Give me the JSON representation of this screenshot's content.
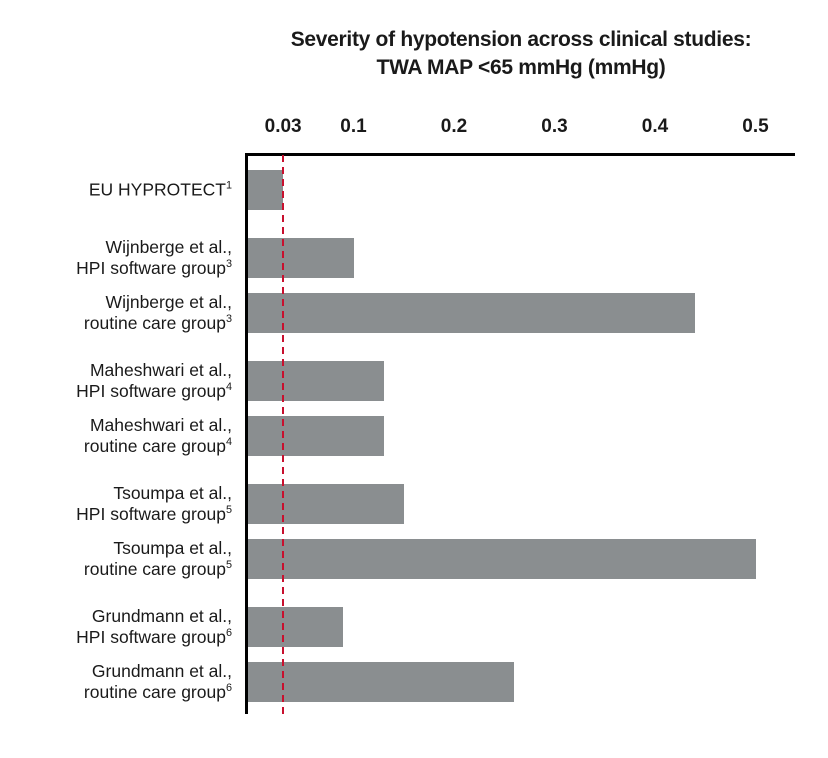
{
  "title": {
    "line1": "Severity of hypotension across clinical studies:",
    "line2": "TWA MAP <65 mmHg (mmHg)"
  },
  "axis": {
    "tick_values": [
      0.03,
      0.1,
      0.2,
      0.3,
      0.4,
      0.5
    ],
    "tick_labels": [
      "0.03",
      "0.1",
      "0.2",
      "0.3",
      "0.4",
      "0.5"
    ]
  },
  "colors": {
    "bar": "#8a8e90",
    "reference_line": "#c8102e",
    "axis": "#000000",
    "text": "#1a1a1a"
  },
  "chart_data": {
    "type": "bar",
    "orientation": "horizontal",
    "title": "Severity of hypotension across clinical studies: TWA MAP <65 mmHg (mmHg)",
    "categories": [
      "EU HYPROTECT¹",
      "Wijnberge et al., HPI software group³",
      "Wijnberge et al., routine care group³",
      "Maheshwari et al., HPI software group⁴",
      "Maheshwari et al., routine care group⁴",
      "Tsoumpa et al., HPI software group⁵",
      "Tsoumpa et al., routine care group⁵",
      "Grundmann et al., HPI software group⁶",
      "Grundmann et al., routine care group⁶"
    ],
    "values": [
      0.03,
      0.1,
      0.44,
      0.13,
      0.13,
      0.15,
      0.5,
      0.09,
      0.26
    ],
    "xlabel": "TWA MAP <65 mmHg (mmHg)",
    "ylabel": "",
    "xlim": [
      0,
      0.55
    ],
    "xticks": [
      0.03,
      0.1,
      0.2,
      0.3,
      0.4,
      0.5
    ],
    "reference_line_x": 0.03,
    "grid": false,
    "legend": false
  },
  "row_meta": [
    {
      "lines": [
        "EU HYPROTECT"
      ],
      "sup": "1",
      "group": 0
    },
    {
      "lines": [
        "Wijnberge et al.,",
        "HPI software group"
      ],
      "sup": "3",
      "group": 1
    },
    {
      "lines": [
        "Wijnberge et al.,",
        "routine care group"
      ],
      "sup": "3",
      "group": 1
    },
    {
      "lines": [
        "Maheshwari et al.,",
        "HPI software group"
      ],
      "sup": "4",
      "group": 2
    },
    {
      "lines": [
        "Maheshwari et al.,",
        "routine care group"
      ],
      "sup": "4",
      "group": 2
    },
    {
      "lines": [
        "Tsoumpa et al.,",
        "HPI software group"
      ],
      "sup": "5",
      "group": 3
    },
    {
      "lines": [
        "Tsoumpa et al.,",
        "routine care group"
      ],
      "sup": "5",
      "group": 3
    },
    {
      "lines": [
        "Grundmann et al.,",
        "HPI software group"
      ],
      "sup": "6",
      "group": 4
    },
    {
      "lines": [
        "Grundmann et al.,",
        "routine care group"
      ],
      "sup": "6",
      "group": 4
    }
  ]
}
